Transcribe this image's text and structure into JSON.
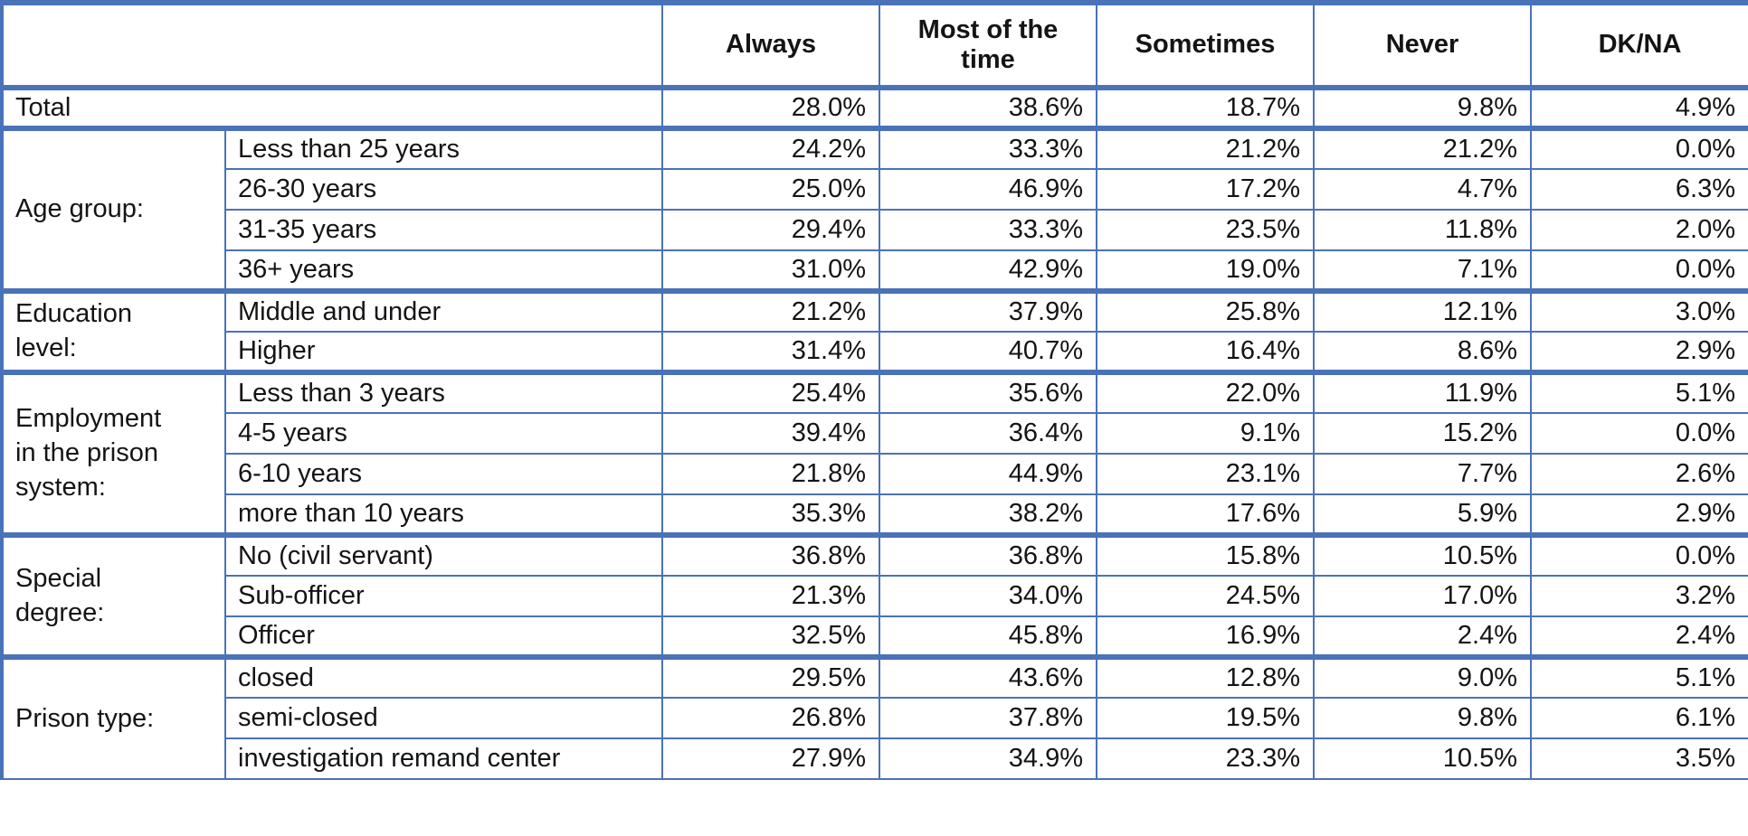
{
  "colors": {
    "border_blue": "#4A72B8",
    "text": "#141414",
    "background": "#FFFFFF"
  },
  "chart_data": {
    "type": "table",
    "corner_label": "",
    "headers": [
      "Always",
      "Most of the time",
      "Sometimes",
      "Never",
      "DK/NA"
    ],
    "total": {
      "label": "Total",
      "values": [
        "28.0%",
        "38.6%",
        "18.7%",
        "9.8%",
        "4.9%"
      ]
    },
    "groups": [
      {
        "label": "Age group:",
        "rows": [
          {
            "label": "Less than 25 years",
            "values": [
              "24.2%",
              "33.3%",
              "21.2%",
              "21.2%",
              "0.0%"
            ]
          },
          {
            "label": "26-30 years",
            "values": [
              "25.0%",
              "46.9%",
              "17.2%",
              "4.7%",
              "6.3%"
            ]
          },
          {
            "label": "31-35 years",
            "values": [
              "29.4%",
              "33.3%",
              "23.5%",
              "11.8%",
              "2.0%"
            ]
          },
          {
            "label": "36+ years",
            "values": [
              "31.0%",
              "42.9%",
              "19.0%",
              "7.1%",
              "0.0%"
            ]
          }
        ]
      },
      {
        "label": "Education level:",
        "rows": [
          {
            "label": "Middle and under",
            "values": [
              "21.2%",
              "37.9%",
              "25.8%",
              "12.1%",
              "3.0%"
            ]
          },
          {
            "label": "Higher",
            "values": [
              "31.4%",
              "40.7%",
              "16.4%",
              "8.6%",
              "2.9%"
            ]
          }
        ]
      },
      {
        "label": "Employment in the prison system:",
        "rows": [
          {
            "label": "Less than 3 years",
            "values": [
              "25.4%",
              "35.6%",
              "22.0%",
              "11.9%",
              "5.1%"
            ]
          },
          {
            "label": "4-5 years",
            "values": [
              "39.4%",
              "36.4%",
              "9.1%",
              "15.2%",
              "0.0%"
            ]
          },
          {
            "label": "6-10 years",
            "values": [
              "21.8%",
              "44.9%",
              "23.1%",
              "7.7%",
              "2.6%"
            ]
          },
          {
            "label": "more than 10 years",
            "values": [
              "35.3%",
              "38.2%",
              "17.6%",
              "5.9%",
              "2.9%"
            ]
          }
        ]
      },
      {
        "label": "Special degree:",
        "rows": [
          {
            "label": "No (civil servant)",
            "values": [
              "36.8%",
              "36.8%",
              "15.8%",
              "10.5%",
              "0.0%"
            ]
          },
          {
            "label": "Sub-officer",
            "values": [
              "21.3%",
              "34.0%",
              "24.5%",
              "17.0%",
              "3.2%"
            ]
          },
          {
            "label": "Officer",
            "values": [
              "32.5%",
              "45.8%",
              "16.9%",
              "2.4%",
              "2.4%"
            ]
          }
        ]
      },
      {
        "label": "Prison type:",
        "rows": [
          {
            "label": "closed",
            "values": [
              "29.5%",
              "43.6%",
              "12.8%",
              "9.0%",
              "5.1%"
            ]
          },
          {
            "label": "semi-closed",
            "values": [
              "26.8%",
              "37.8%",
              "19.5%",
              "9.8%",
              "6.1%"
            ]
          },
          {
            "label": "investigation remand center",
            "values": [
              "27.9%",
              "34.9%",
              "23.3%",
              "10.5%",
              "3.5%"
            ]
          }
        ]
      }
    ]
  }
}
